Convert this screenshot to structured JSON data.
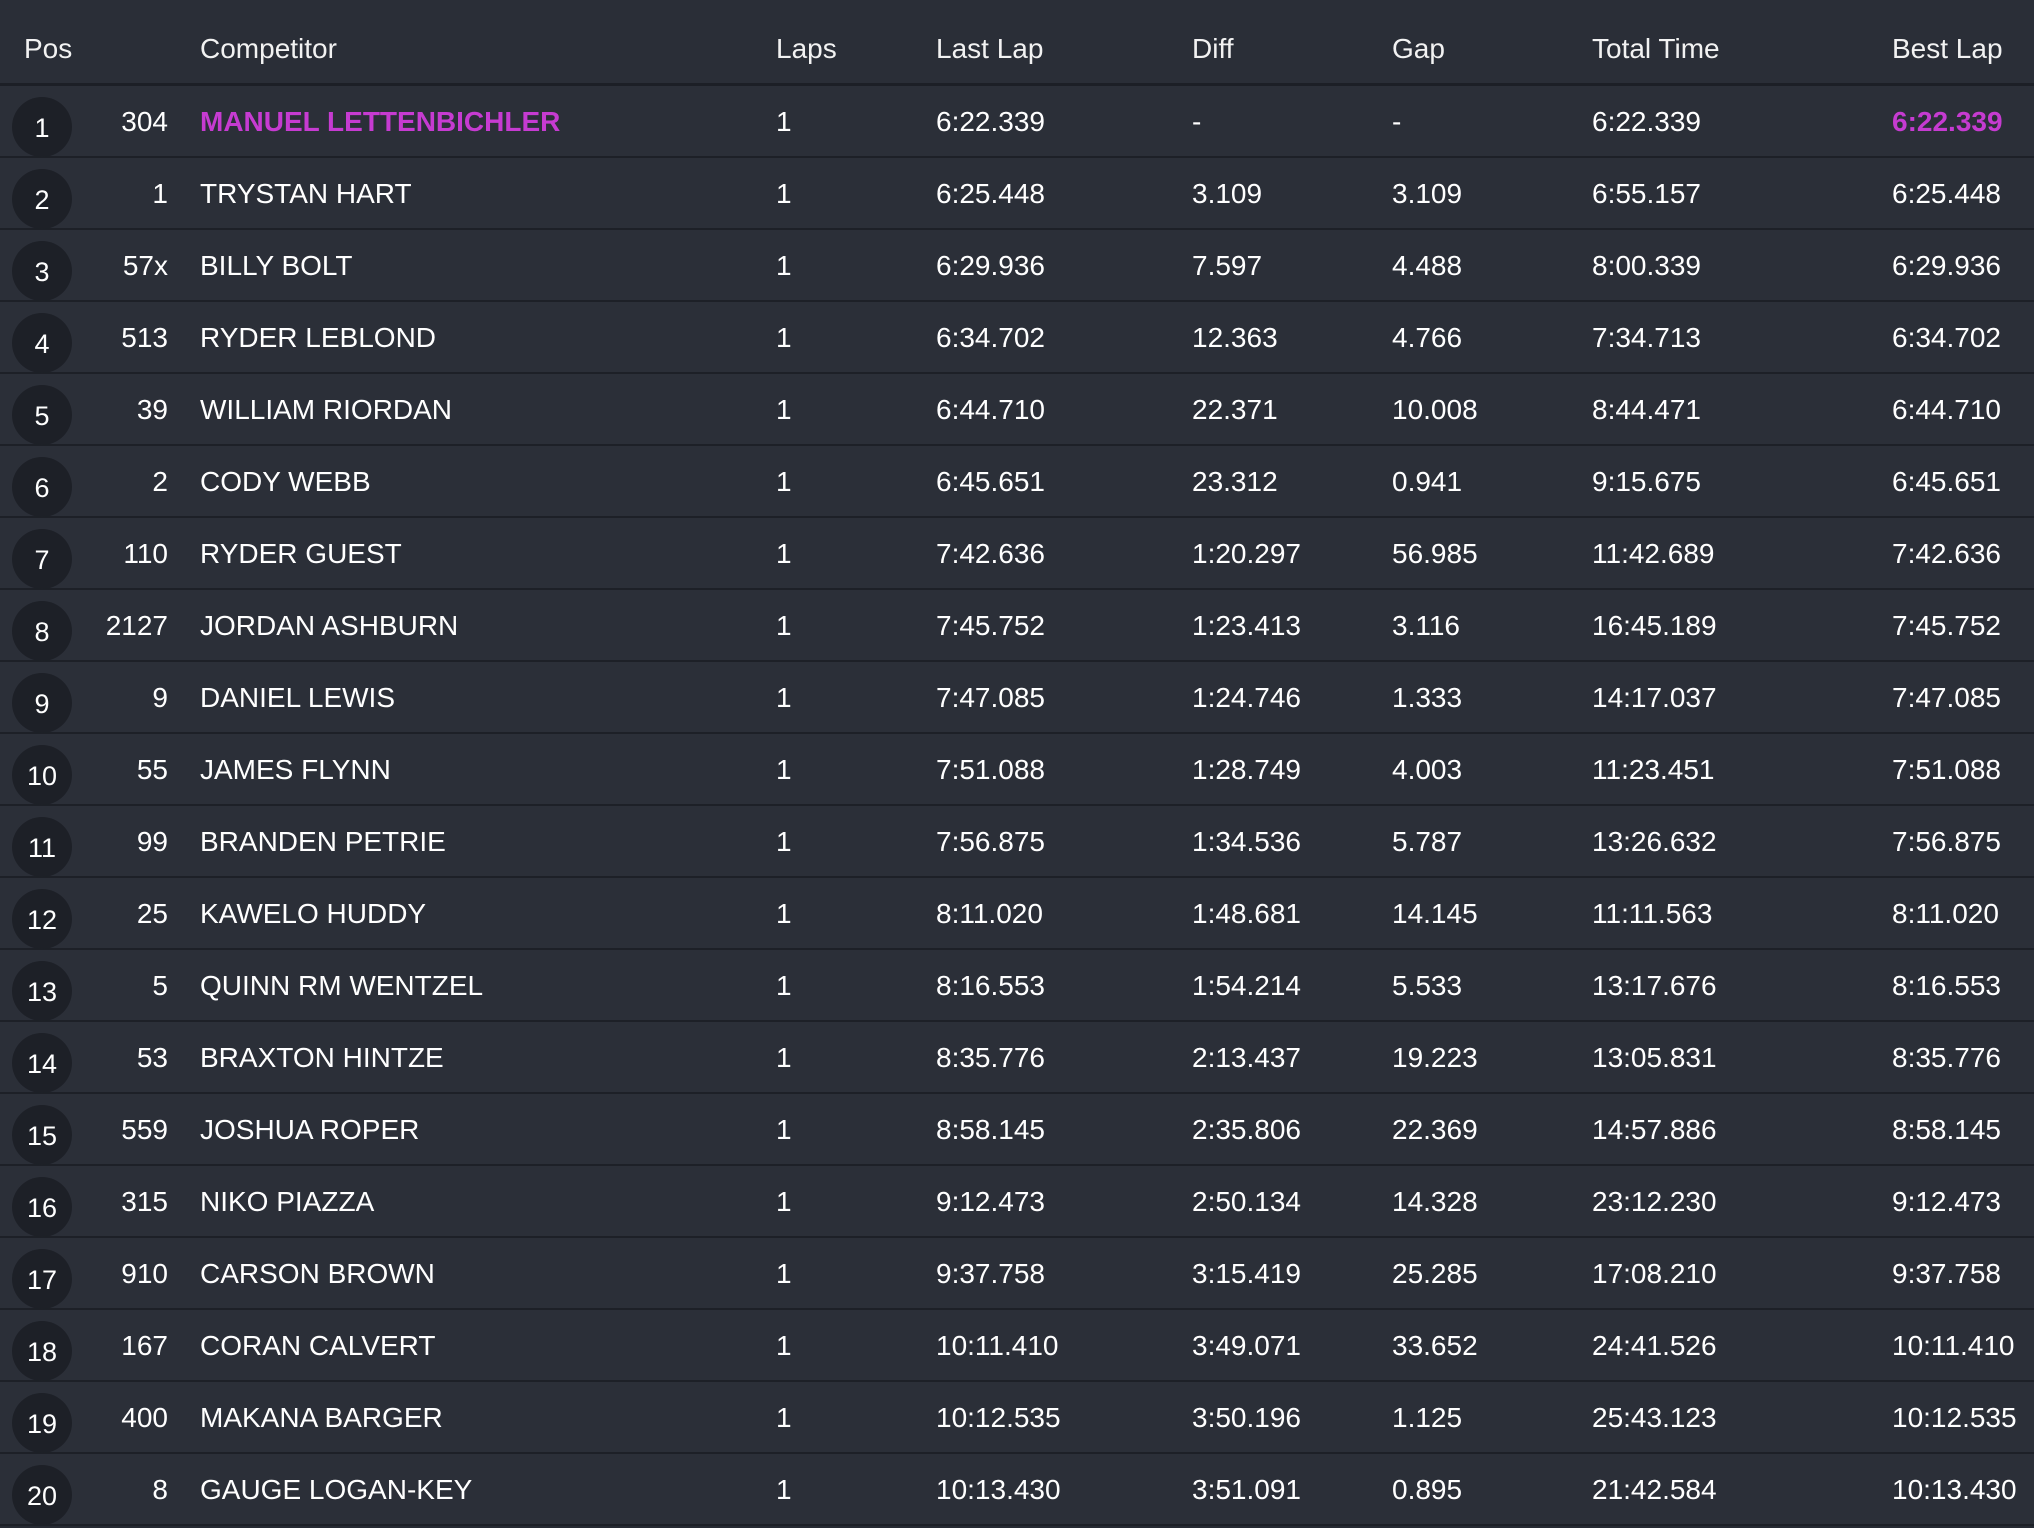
{
  "header": {
    "pos": "Pos",
    "competitor": "Competitor",
    "laps": "Laps",
    "last_lap": "Last Lap",
    "diff": "Diff",
    "gap": "Gap",
    "total_time": "Total Time",
    "best_lap": "Best Lap"
  },
  "colors": {
    "background": "#262a33",
    "row": "#2b2f38",
    "badge": "#1d2027",
    "highlight": "#c63bd1"
  },
  "rows": [
    {
      "pos": "1",
      "num": "304",
      "name": "MANUEL LETTENBICHLER",
      "laps": "1",
      "last": "6:22.339",
      "diff": "-",
      "gap": "-",
      "total": "6:22.339",
      "best": "6:22.339"
    },
    {
      "pos": "2",
      "num": "1",
      "name": "TRYSTAN HART",
      "laps": "1",
      "last": "6:25.448",
      "diff": "3.109",
      "gap": "3.109",
      "total": "6:55.157",
      "best": "6:25.448"
    },
    {
      "pos": "3",
      "num": "57x",
      "name": "BILLY BOLT",
      "laps": "1",
      "last": "6:29.936",
      "diff": "7.597",
      "gap": "4.488",
      "total": "8:00.339",
      "best": "6:29.936"
    },
    {
      "pos": "4",
      "num": "513",
      "name": "RYDER LEBLOND",
      "laps": "1",
      "last": "6:34.702",
      "diff": "12.363",
      "gap": "4.766",
      "total": "7:34.713",
      "best": "6:34.702"
    },
    {
      "pos": "5",
      "num": "39",
      "name": "WILLIAM RIORDAN",
      "laps": "1",
      "last": "6:44.710",
      "diff": "22.371",
      "gap": "10.008",
      "total": "8:44.471",
      "best": "6:44.710"
    },
    {
      "pos": "6",
      "num": "2",
      "name": "CODY WEBB",
      "laps": "1",
      "last": "6:45.651",
      "diff": "23.312",
      "gap": "0.941",
      "total": "9:15.675",
      "best": "6:45.651"
    },
    {
      "pos": "7",
      "num": "110",
      "name": "RYDER GUEST",
      "laps": "1",
      "last": "7:42.636",
      "diff": "1:20.297",
      "gap": "56.985",
      "total": "11:42.689",
      "best": "7:42.636"
    },
    {
      "pos": "8",
      "num": "2127",
      "name": "JORDAN ASHBURN",
      "laps": "1",
      "last": "7:45.752",
      "diff": "1:23.413",
      "gap": "3.116",
      "total": "16:45.189",
      "best": "7:45.752"
    },
    {
      "pos": "9",
      "num": "9",
      "name": "DANIEL LEWIS",
      "laps": "1",
      "last": "7:47.085",
      "diff": "1:24.746",
      "gap": "1.333",
      "total": "14:17.037",
      "best": "7:47.085"
    },
    {
      "pos": "10",
      "num": "55",
      "name": "JAMES FLYNN",
      "laps": "1",
      "last": "7:51.088",
      "diff": "1:28.749",
      "gap": "4.003",
      "total": "11:23.451",
      "best": "7:51.088"
    },
    {
      "pos": "11",
      "num": "99",
      "name": "BRANDEN PETRIE",
      "laps": "1",
      "last": "7:56.875",
      "diff": "1:34.536",
      "gap": "5.787",
      "total": "13:26.632",
      "best": "7:56.875"
    },
    {
      "pos": "12",
      "num": "25",
      "name": "KAWELO HUDDY",
      "laps": "1",
      "last": "8:11.020",
      "diff": "1:48.681",
      "gap": "14.145",
      "total": "11:11.563",
      "best": "8:11.020"
    },
    {
      "pos": "13",
      "num": "5",
      "name": "QUINN RM WENTZEL",
      "laps": "1",
      "last": "8:16.553",
      "diff": "1:54.214",
      "gap": "5.533",
      "total": "13:17.676",
      "best": "8:16.553"
    },
    {
      "pos": "14",
      "num": "53",
      "name": "BRAXTON HINTZE",
      "laps": "1",
      "last": "8:35.776",
      "diff": "2:13.437",
      "gap": "19.223",
      "total": "13:05.831",
      "best": "8:35.776"
    },
    {
      "pos": "15",
      "num": "559",
      "name": "JOSHUA ROPER",
      "laps": "1",
      "last": "8:58.145",
      "diff": "2:35.806",
      "gap": "22.369",
      "total": "14:57.886",
      "best": "8:58.145"
    },
    {
      "pos": "16",
      "num": "315",
      "name": "NIKO PIAZZA",
      "laps": "1",
      "last": "9:12.473",
      "diff": "2:50.134",
      "gap": "14.328",
      "total": "23:12.230",
      "best": "9:12.473"
    },
    {
      "pos": "17",
      "num": "910",
      "name": "CARSON BROWN",
      "laps": "1",
      "last": "9:37.758",
      "diff": "3:15.419",
      "gap": "25.285",
      "total": "17:08.210",
      "best": "9:37.758"
    },
    {
      "pos": "18",
      "num": "167",
      "name": "CORAN CALVERT",
      "laps": "1",
      "last": "10:11.410",
      "diff": "3:49.071",
      "gap": "33.652",
      "total": "24:41.526",
      "best": "10:11.410"
    },
    {
      "pos": "19",
      "num": "400",
      "name": "MAKANA BARGER",
      "laps": "1",
      "last": "10:12.535",
      "diff": "3:50.196",
      "gap": "1.125",
      "total": "25:43.123",
      "best": "10:12.535"
    },
    {
      "pos": "20",
      "num": "8",
      "name": "GAUGE LOGAN-KEY",
      "laps": "1",
      "last": "10:13.430",
      "diff": "3:51.091",
      "gap": "0.895",
      "total": "21:42.584",
      "best": "10:13.430"
    }
  ]
}
